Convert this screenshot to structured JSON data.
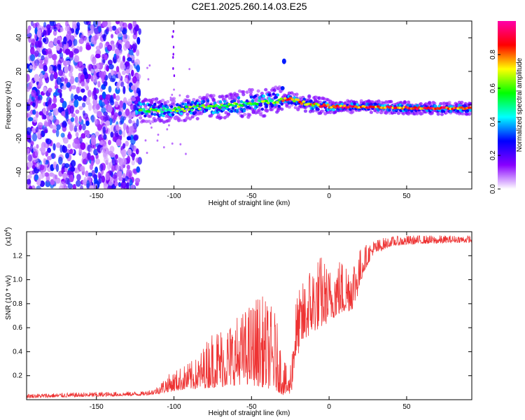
{
  "title": "C2E1.2025.260.14.03.E25",
  "chart_data": [
    {
      "type": "heatmap",
      "name": "spectrogram",
      "xlabel": "Height of straight line (km)",
      "ylabel": "Frequency (Hz)",
      "xlim": [
        -195,
        92
      ],
      "ylim": [
        -50,
        50
      ],
      "xticks": [
        -150,
        -100,
        -50,
        0,
        50
      ],
      "yticks": [
        -40,
        -20,
        0,
        20,
        40
      ],
      "colorbar": {
        "label": "Normalized spectral amplitude",
        "range": [
          0,
          1
        ],
        "ticks": [
          0.0,
          0.2,
          0.4,
          0.6,
          0.8
        ],
        "colors": [
          "#ffffff",
          "#8800ff",
          "#0000ff",
          "#00ffff",
          "#00ff00",
          "#ffff00",
          "#ff0000",
          "#ff00aa"
        ]
      },
      "ridge": {
        "description_points": [
          [
            -122,
            -3
          ],
          [
            -110,
            -3
          ],
          [
            -100,
            -3
          ],
          [
            -90,
            -2
          ],
          [
            -80,
            -1
          ],
          [
            -70,
            -1
          ],
          [
            -60,
            0
          ],
          [
            -50,
            1
          ],
          [
            -40,
            2
          ],
          [
            -30,
            3
          ],
          [
            -25,
            3
          ],
          [
            -20,
            2
          ],
          [
            -10,
            0
          ],
          [
            0,
            -1
          ],
          [
            20,
            -1
          ],
          [
            40,
            -1.5
          ],
          [
            60,
            -2
          ],
          [
            80,
            -2
          ],
          [
            92,
            -2
          ]
        ],
        "peak_amplitude": 0.95
      },
      "noise_region": {
        "x_range": [
          -195,
          -122
        ],
        "amplitude_range": [
          0.05,
          0.35
        ]
      },
      "isolated_spike": {
        "x": -29,
        "y": 26,
        "amplitude": 0.3
      }
    },
    {
      "type": "line",
      "name": "snr",
      "xlabel": "Height of straight line (km)",
      "ylabel": "SNR (10 * v/v)",
      "y_multiplier_label": "(x10",
      "y_multiplier_exp": "4",
      "xlim": [
        -195,
        92
      ],
      "ylim": [
        0,
        14000
      ],
      "xticks": [
        -150,
        -100,
        -50,
        0,
        50
      ],
      "yticks": [
        2000,
        4000,
        6000,
        8000,
        10000,
        12000
      ],
      "ytick_labels": [
        "0.2",
        "0.4",
        "0.6",
        "0.8",
        "1.0",
        "1.2"
      ],
      "color": "#ee3333",
      "envelope": {
        "x": [
          -195,
          -150,
          -120,
          -112,
          -105,
          -95,
          -85,
          -75,
          -65,
          -55,
          -45,
          -35,
          -30,
          -26,
          -24,
          -22,
          -18,
          -12,
          -5,
          0,
          5,
          10,
          15,
          18,
          22,
          28,
          35,
          40,
          50,
          60,
          70,
          80,
          92
        ],
        "lower": [
          150,
          250,
          350,
          450,
          600,
          800,
          900,
          1000,
          1100,
          1300,
          1100,
          800,
          400,
          300,
          800,
          3000,
          4500,
          5500,
          6000,
          6500,
          7000,
          7200,
          7500,
          8500,
          10500,
          12000,
          12500,
          12800,
          12900,
          13000,
          13000,
          13100,
          13100
        ],
        "upper": [
          500,
          650,
          700,
          1000,
          2000,
          2800,
          3500,
          6000,
          6500,
          7500,
          9000,
          7500,
          4000,
          2000,
          4500,
          8500,
          9500,
          11500,
          12200,
          11000,
          12000,
          11800,
          12000,
          12500,
          12800,
          13300,
          13500,
          13600,
          13700,
          13700,
          13700,
          13700,
          13700
        ]
      }
    }
  ]
}
